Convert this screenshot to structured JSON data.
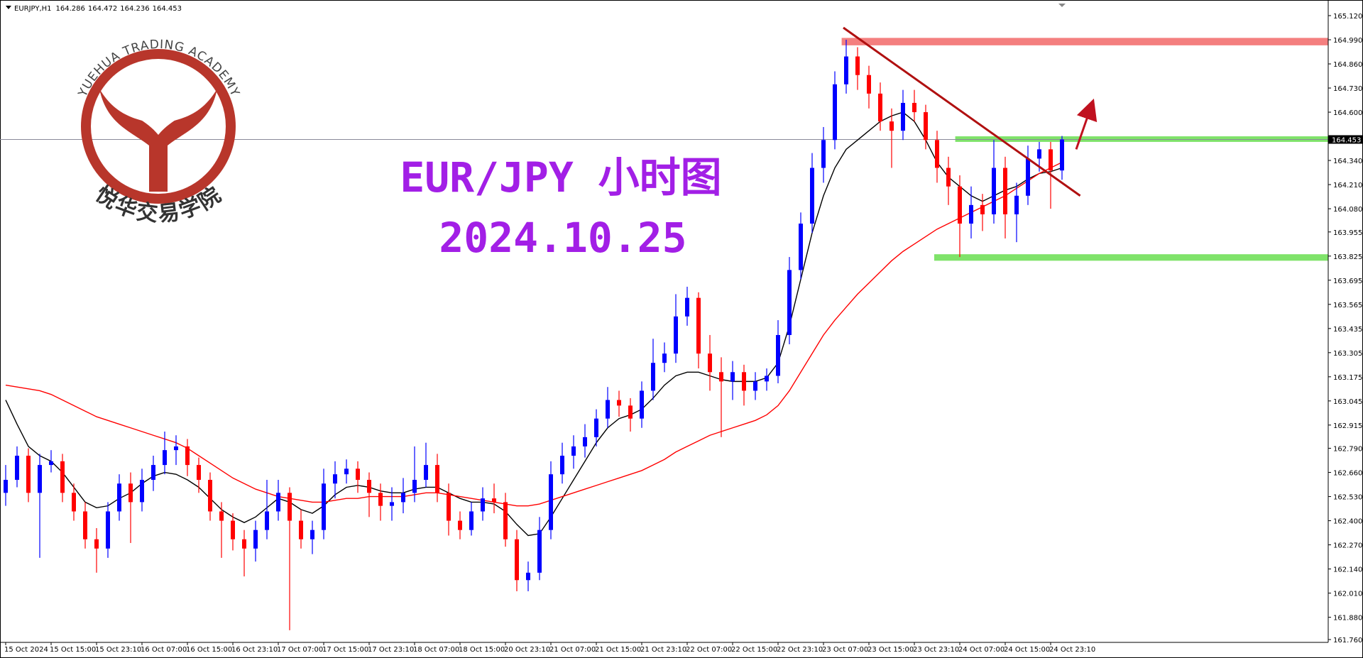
{
  "chart_data": {
    "type": "candlestick",
    "symbol": "EURJPY,H1",
    "title": "EUR/JPY 小时图",
    "subtitle": "2024.10.25",
    "logo": {
      "text_top": "YUEHUA TRADING ACADEMY",
      "text_bottom": "悦华交易学院"
    },
    "up_color": "#0000ff",
    "down_color": "#ff0000",
    "ohlc": [
      [
        162.55,
        162.7,
        162.48,
        162.62
      ],
      [
        162.62,
        162.8,
        162.58,
        162.75
      ],
      [
        162.75,
        162.79,
        162.5,
        162.55
      ],
      [
        162.55,
        162.76,
        162.2,
        162.7
      ],
      [
        162.7,
        162.78,
        162.66,
        162.72
      ],
      [
        162.72,
        162.76,
        162.5,
        162.55
      ],
      [
        162.55,
        162.6,
        162.4,
        162.45
      ],
      [
        162.45,
        162.5,
        162.25,
        162.3
      ],
      [
        162.3,
        162.36,
        162.12,
        162.25
      ],
      [
        162.25,
        162.5,
        162.2,
        162.45
      ],
      [
        162.45,
        162.65,
        162.4,
        162.6
      ],
      [
        162.6,
        162.66,
        162.28,
        162.5
      ],
      [
        162.5,
        162.68,
        162.45,
        162.62
      ],
      [
        162.62,
        162.75,
        162.56,
        162.7
      ],
      [
        162.7,
        162.88,
        162.65,
        162.78
      ],
      [
        162.78,
        162.86,
        162.7,
        162.8
      ],
      [
        162.8,
        162.84,
        162.64,
        162.7
      ],
      [
        162.7,
        162.74,
        162.55,
        162.62
      ],
      [
        162.62,
        162.66,
        162.4,
        162.45
      ],
      [
        162.45,
        162.5,
        162.2,
        162.4
      ],
      [
        162.4,
        162.44,
        162.24,
        162.3
      ],
      [
        162.3,
        162.35,
        162.1,
        162.25
      ],
      [
        162.25,
        162.4,
        162.18,
        162.35
      ],
      [
        162.35,
        162.62,
        162.3,
        162.45
      ],
      [
        162.45,
        162.62,
        162.4,
        162.55
      ],
      [
        162.55,
        162.58,
        161.81,
        162.4
      ],
      [
        162.4,
        162.46,
        162.25,
        162.3
      ],
      [
        162.3,
        162.4,
        162.22,
        162.35
      ],
      [
        162.35,
        162.68,
        162.3,
        162.6
      ],
      [
        162.6,
        162.72,
        162.52,
        162.65
      ],
      [
        162.65,
        162.73,
        162.6,
        162.68
      ],
      [
        162.68,
        162.72,
        162.55,
        162.62
      ],
      [
        162.62,
        162.66,
        162.42,
        162.55
      ],
      [
        162.55,
        162.6,
        162.4,
        162.48
      ],
      [
        162.48,
        162.58,
        162.4,
        162.5
      ],
      [
        162.5,
        162.63,
        162.44,
        162.55
      ],
      [
        162.55,
        162.8,
        162.5,
        162.62
      ],
      [
        162.62,
        162.82,
        162.58,
        162.7
      ],
      [
        162.7,
        162.76,
        162.5,
        162.55
      ],
      [
        162.55,
        162.6,
        162.32,
        162.4
      ],
      [
        162.4,
        162.45,
        162.3,
        162.35
      ],
      [
        162.35,
        162.5,
        162.32,
        162.45
      ],
      [
        162.45,
        162.58,
        162.4,
        162.52
      ],
      [
        162.52,
        162.6,
        162.44,
        162.5
      ],
      [
        162.5,
        162.55,
        162.26,
        162.3
      ],
      [
        162.3,
        162.35,
        162.02,
        162.08
      ],
      [
        162.08,
        162.18,
        162.02,
        162.12
      ],
      [
        162.12,
        162.42,
        162.08,
        162.35
      ],
      [
        162.35,
        162.72,
        162.3,
        162.65
      ],
      [
        162.65,
        162.82,
        162.6,
        162.75
      ],
      [
        162.75,
        162.86,
        162.68,
        162.8
      ],
      [
        162.8,
        162.92,
        162.74,
        162.85
      ],
      [
        162.85,
        163.0,
        162.8,
        162.95
      ],
      [
        162.95,
        163.12,
        162.9,
        163.05
      ],
      [
        163.05,
        163.1,
        162.96,
        163.02
      ],
      [
        163.02,
        163.06,
        162.88,
        162.95
      ],
      [
        162.95,
        163.15,
        162.9,
        163.1
      ],
      [
        163.1,
        163.38,
        163.05,
        163.25
      ],
      [
        163.25,
        163.36,
        163.2,
        163.3
      ],
      [
        163.3,
        163.62,
        163.25,
        163.5
      ],
      [
        163.5,
        163.66,
        163.45,
        163.6
      ],
      [
        163.6,
        163.63,
        163.22,
        163.3
      ],
      [
        163.3,
        163.4,
        163.1,
        163.2
      ],
      [
        163.2,
        163.28,
        162.85,
        163.15
      ],
      [
        163.15,
        163.26,
        163.05,
        163.2
      ],
      [
        163.2,
        163.24,
        163.02,
        163.1
      ],
      [
        163.1,
        163.2,
        163.05,
        163.15
      ],
      [
        163.15,
        163.22,
        163.1,
        163.18
      ],
      [
        163.18,
        163.48,
        163.14,
        163.4
      ],
      [
        163.4,
        163.82,
        163.35,
        163.75
      ],
      [
        163.75,
        164.06,
        163.7,
        164.0
      ],
      [
        164.0,
        164.38,
        163.95,
        164.3
      ],
      [
        164.3,
        164.52,
        164.22,
        164.45
      ],
      [
        164.45,
        164.82,
        164.4,
        164.75
      ],
      [
        164.75,
        164.99,
        164.7,
        164.9
      ],
      [
        164.9,
        164.95,
        164.72,
        164.8
      ],
      [
        164.8,
        164.85,
        164.62,
        164.7
      ],
      [
        164.7,
        164.76,
        164.5,
        164.55
      ],
      [
        164.55,
        164.62,
        164.3,
        164.5
      ],
      [
        164.5,
        164.72,
        164.45,
        164.65
      ],
      [
        164.65,
        164.72,
        164.55,
        164.6
      ],
      [
        164.6,
        164.64,
        164.4,
        164.45
      ],
      [
        164.45,
        164.5,
        164.22,
        164.3
      ],
      [
        164.3,
        164.36,
        164.1,
        164.2
      ],
      [
        164.2,
        164.26,
        163.82,
        164.0
      ],
      [
        164.0,
        164.2,
        163.92,
        164.1
      ],
      [
        164.1,
        164.16,
        163.96,
        164.05
      ],
      [
        164.05,
        164.45,
        164.0,
        164.3
      ],
      [
        164.3,
        164.36,
        163.92,
        164.05
      ],
      [
        164.05,
        164.22,
        163.9,
        164.15
      ],
      [
        164.15,
        164.42,
        164.1,
        164.35
      ],
      [
        164.35,
        164.44,
        164.28,
        164.4
      ],
      [
        164.4,
        164.44,
        164.08,
        164.286
      ],
      [
        164.286,
        164.472,
        164.236,
        164.453
      ]
    ],
    "moving_averages": [
      {
        "color": "#000000",
        "values": [
          163.05,
          162.92,
          162.8,
          162.75,
          162.72,
          162.66,
          162.58,
          162.5,
          162.47,
          162.48,
          162.52,
          162.55,
          162.6,
          162.64,
          162.66,
          162.65,
          162.62,
          162.58,
          162.52,
          162.46,
          162.42,
          162.39,
          162.42,
          162.47,
          162.52,
          162.5,
          162.46,
          162.44,
          162.48,
          162.54,
          162.58,
          162.59,
          162.58,
          162.56,
          162.55,
          162.55,
          162.57,
          162.58,
          162.58,
          162.55,
          162.52,
          162.5,
          162.5,
          162.49,
          162.45,
          162.38,
          162.32,
          162.33,
          162.42,
          162.52,
          162.62,
          162.72,
          162.82,
          162.9,
          162.95,
          162.97,
          163.0,
          163.06,
          163.13,
          163.18,
          163.2,
          163.2,
          163.18,
          163.16,
          163.15,
          163.15,
          163.15,
          163.17,
          163.25,
          163.45,
          163.7,
          163.95,
          164.15,
          164.3,
          164.4,
          164.45,
          164.5,
          164.55,
          164.58,
          164.6,
          164.55,
          164.45,
          164.33,
          164.25,
          164.2,
          164.15,
          164.12,
          164.15,
          164.18,
          164.2,
          164.24,
          164.27,
          164.28,
          164.3
        ]
      },
      {
        "color": "#ff0000",
        "values": [
          163.13,
          163.12,
          163.11,
          163.1,
          163.08,
          163.05,
          163.02,
          162.99,
          162.96,
          162.94,
          162.92,
          162.9,
          162.88,
          162.86,
          162.84,
          162.82,
          162.79,
          162.75,
          162.71,
          162.67,
          162.63,
          162.6,
          162.57,
          162.55,
          162.53,
          162.52,
          162.51,
          162.5,
          162.5,
          162.51,
          162.52,
          162.52,
          162.53,
          162.53,
          162.53,
          162.53,
          162.54,
          162.55,
          162.55,
          162.54,
          162.53,
          162.52,
          162.51,
          162.5,
          162.49,
          162.48,
          162.48,
          162.49,
          162.51,
          162.53,
          162.55,
          162.57,
          162.59,
          162.61,
          162.63,
          162.65,
          162.67,
          162.7,
          162.73,
          162.77,
          162.8,
          162.83,
          162.86,
          162.88,
          162.9,
          162.92,
          162.94,
          162.97,
          163.02,
          163.1,
          163.2,
          163.3,
          163.4,
          163.48,
          163.55,
          163.62,
          163.68,
          163.74,
          163.8,
          163.85,
          163.89,
          163.93,
          163.97,
          164.0,
          164.03,
          164.06,
          164.09,
          164.12,
          164.15,
          164.19,
          164.23,
          164.27,
          164.3,
          164.33
        ]
      }
    ],
    "zones": [
      {
        "color": "#f47f7f",
        "from": 73.6,
        "low": 164.96,
        "high": 165.0
      },
      {
        "color": "#7fe36a",
        "from": 83.6,
        "low": 164.44,
        "high": 164.47
      },
      {
        "color": "#7fe36a",
        "from": 81.75,
        "low": 163.8,
        "high": 163.835
      }
    ],
    "trendline": {
      "color": "#b01010",
      "x": [
        73.75,
        94.6
      ],
      "y": [
        165.055,
        164.15
      ]
    },
    "arrow": {
      "color": "#c0111f",
      "x": [
        94.25,
        95.56
      ],
      "y": [
        164.4,
        164.63
      ]
    },
    "ylim": [
      161.76,
      165.12
    ],
    "yticks": [
      {
        "value": 165.12,
        "label": "165.120"
      },
      {
        "value": 164.99,
        "label": "164.990"
      },
      {
        "value": 164.86,
        "label": "164.860"
      },
      {
        "value": 164.73,
        "label": "164.730"
      },
      {
        "value": 164.6,
        "label": "164.600"
      },
      {
        "value": 164.34,
        "label": "164.340"
      },
      {
        "value": 164.21,
        "label": "164.210"
      },
      {
        "value": 164.08,
        "label": "164.080"
      },
      163.955,
      163.825,
      163.695,
      163.565,
      163.435,
      163.305,
      163.175,
      163.045,
      162.915,
      {
        "value": 162.79,
        "label": "162.790"
      },
      {
        "value": 162.66,
        "label": "162.660"
      },
      {
        "value": 162.53,
        "label": "162.530"
      },
      {
        "value": 162.4,
        "label": "162.400"
      },
      {
        "value": 162.27,
        "label": "162.270"
      },
      {
        "value": 162.14,
        "label": "162.140"
      },
      {
        "value": 162.01,
        "label": "162.010"
      },
      {
        "value": 161.88,
        "label": "161.880"
      },
      {
        "value": 161.76,
        "label": "161.760"
      }
    ],
    "xticks": [
      {
        "value": 0,
        "label": "15 Oct 2024"
      },
      {
        "value": 4,
        "label": "15 Oct 15:00"
      },
      {
        "value": 8,
        "label": "15 Oct 23:10"
      },
      {
        "value": 12,
        "label": "16 Oct 07:00"
      },
      {
        "value": 16,
        "label": "16 Oct 15:00"
      },
      {
        "value": 20,
        "label": "16 Oct 23:10"
      },
      {
        "value": 24,
        "label": "17 Oct 07:00"
      },
      {
        "value": 28,
        "label": "17 Oct 15:00"
      },
      {
        "value": 32,
        "label": "17 Oct 23:10"
      },
      {
        "value": 36,
        "label": "18 Oct 07:00"
      },
      {
        "value": 40,
        "label": "18 Oct 15:00"
      },
      {
        "value": 44,
        "label": "20 Oct 23:10"
      },
      {
        "value": 48,
        "label": "21 Oct 07:00"
      },
      {
        "value": 52,
        "label": "21 Oct 15:00"
      },
      {
        "value": 56,
        "label": "21 Oct 23:10"
      },
      {
        "value": 60,
        "label": "22 Oct 07:00"
      },
      {
        "value": 64,
        "label": "22 Oct 15:00"
      },
      {
        "value": 68,
        "label": "22 Oct 23:10"
      },
      {
        "value": 72,
        "label": "23 Oct 07:00"
      },
      {
        "value": 76,
        "label": "23 Oct 15:00"
      },
      {
        "value": 80,
        "label": "23 Oct 23:10"
      },
      {
        "value": 84,
        "label": "24 Oct 07:00"
      },
      {
        "value": 88,
        "label": "24 Oct 15:00"
      },
      {
        "value": 92,
        "label": "24 Oct 23:10"
      }
    ]
  }
}
